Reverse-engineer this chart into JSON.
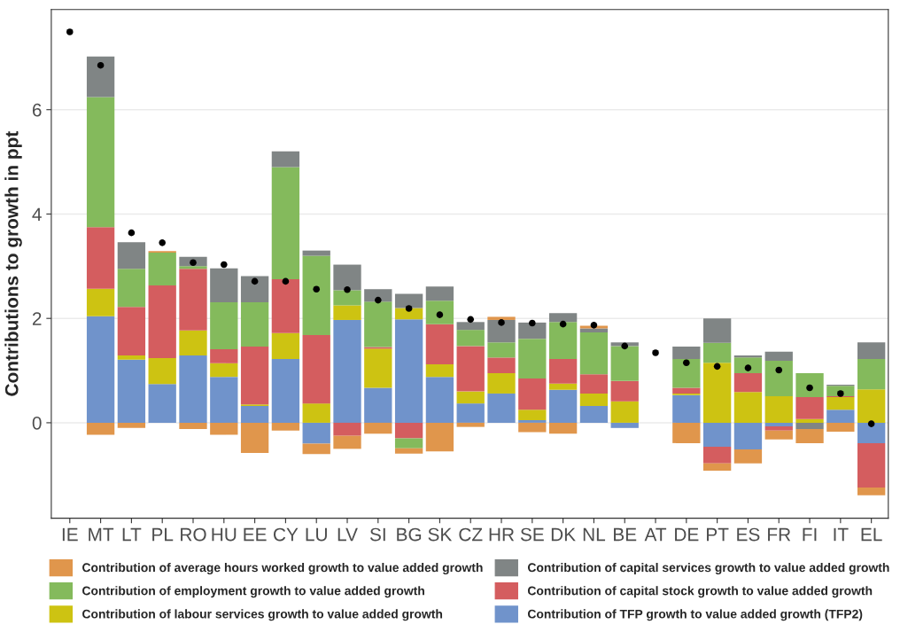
{
  "chart_data": {
    "type": "bar",
    "stacked": true,
    "ylabel": "Contributions to growth in ppt",
    "categories": [
      "IE",
      "MT",
      "LT",
      "PL",
      "RO",
      "HU",
      "EE",
      "CY",
      "LU",
      "LV",
      "SI",
      "BG",
      "SK",
      "CZ",
      "HR",
      "SE",
      "DK",
      "NL",
      "BE",
      "AT",
      "DE",
      "PT",
      "ES",
      "FR",
      "FI",
      "IT",
      "EL"
    ],
    "series": [
      {
        "name": "Contribution of TFP growth to value added growth (TFP2)",
        "color": "#7093cb",
        "values": [
          null,
          2.04,
          1.21,
          0.74,
          1.29,
          0.88,
          0.32,
          1.22,
          -0.4,
          1.97,
          0.67,
          1.98,
          0.88,
          0.37,
          0.56,
          0.05,
          0.63,
          0.32,
          -0.1,
          null,
          0.53,
          -0.46,
          -0.51,
          -0.07,
          null,
          0.25,
          -0.39
        ]
      },
      {
        "name": "Contribution of labour services growth to value added growth",
        "color": "#cdc312",
        "values": [
          null,
          0.53,
          0.08,
          0.5,
          0.48,
          0.26,
          0.03,
          0.5,
          0.37,
          0.28,
          0.75,
          0.22,
          0.24,
          0.23,
          0.39,
          0.2,
          0.12,
          0.24,
          0.41,
          null,
          0.03,
          1.15,
          0.59,
          0.51,
          0.07,
          0.24,
          0.64
        ]
      },
      {
        "name": "Contribution of capital stock growth to value added growth",
        "color": "#d45d5f",
        "values": [
          null,
          1.18,
          0.93,
          1.39,
          1.18,
          0.27,
          1.11,
          1.03,
          1.31,
          -0.25,
          0.03,
          -0.3,
          0.77,
          0.87,
          0.3,
          0.6,
          0.47,
          0.37,
          0.39,
          null,
          0.11,
          -0.32,
          0.36,
          -0.08,
          0.42,
          0.02,
          -0.85
        ]
      },
      {
        "name": "Contribution of employment growth to value added growth",
        "color": "#84ba5c",
        "values": [
          null,
          2.49,
          0.73,
          0.63,
          0.05,
          0.9,
          0.85,
          2.15,
          1.52,
          0.29,
          0.87,
          -0.19,
          0.45,
          0.31,
          0.29,
          0.76,
          0.71,
          0.8,
          0.67,
          null,
          0.55,
          0.38,
          0.3,
          0.68,
          0.46,
          0.2,
          0.58
        ]
      },
      {
        "name": "Contribution of capital services growth to value added growth",
        "color": "#808585",
        "values": [
          null,
          0.78,
          0.51,
          null,
          0.18,
          0.65,
          0.5,
          0.3,
          0.1,
          0.49,
          0.24,
          0.27,
          0.27,
          0.15,
          0.43,
          0.31,
          0.17,
          0.08,
          0.07,
          null,
          0.24,
          0.47,
          0.04,
          0.17,
          -0.12,
          0.02,
          0.32
        ]
      },
      {
        "name": "Contribution of average hours worked growth to value added growth",
        "color": "#e0964c",
        "values": [
          null,
          -0.23,
          -0.1,
          0.03,
          -0.12,
          -0.23,
          -0.58,
          -0.15,
          -0.2,
          -0.25,
          -0.21,
          -0.1,
          -0.55,
          -0.08,
          0.06,
          -0.18,
          -0.21,
          0.05,
          null,
          null,
          -0.39,
          -0.14,
          -0.27,
          -0.17,
          -0.27,
          -0.17,
          -0.15
        ]
      },
      {
        "type": "scatter",
        "color": "#000000",
        "values": [
          7.49,
          6.85,
          3.64,
          3.45,
          3.07,
          3.03,
          2.71,
          2.71,
          2.56,
          2.55,
          2.35,
          2.19,
          2.07,
          1.98,
          1.92,
          1.91,
          1.89,
          1.87,
          1.47,
          1.34,
          1.15,
          1.08,
          1.05,
          1.01,
          0.67,
          0.56,
          -0.02
        ]
      }
    ],
    "ylim": [
      -1.83,
      7.92
    ],
    "yticks": [
      0,
      2,
      4,
      6
    ],
    "grid": "y",
    "legend": "bottom"
  }
}
